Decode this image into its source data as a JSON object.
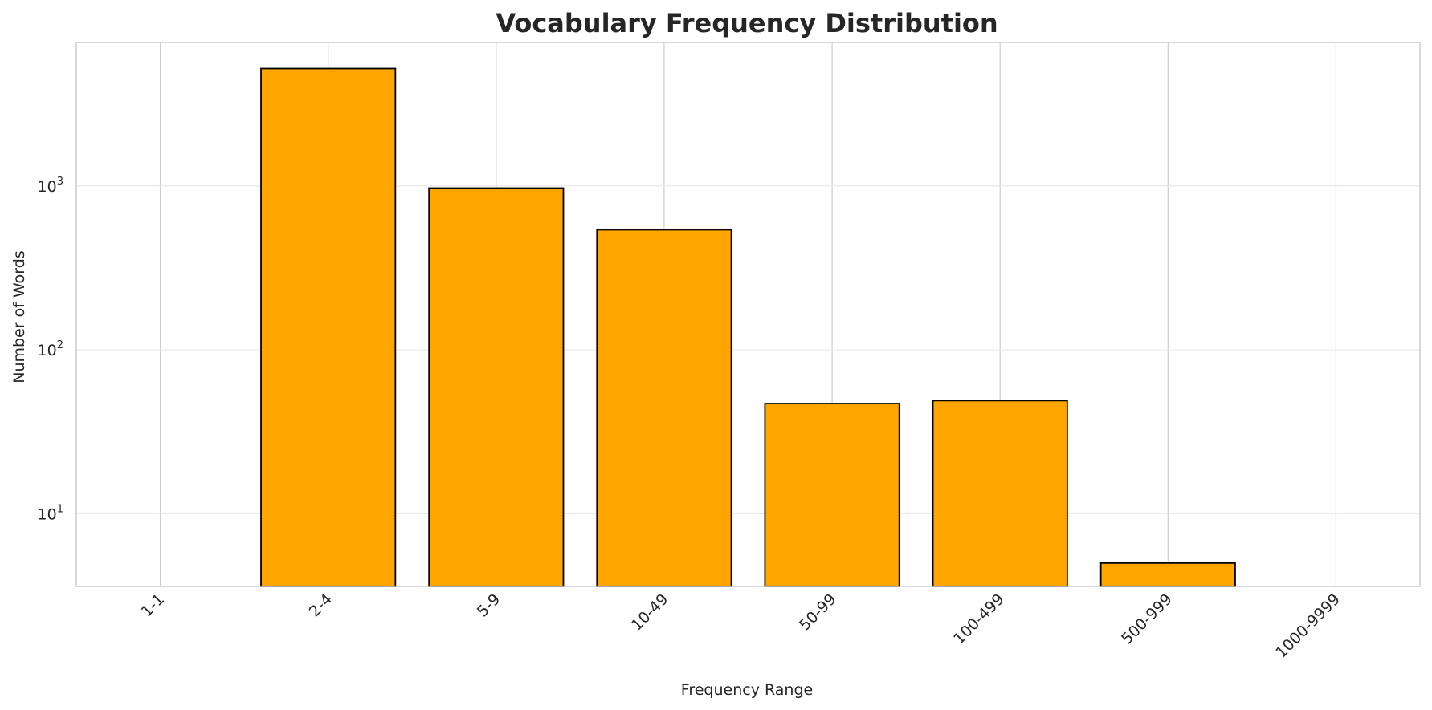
{
  "chart_data": {
    "type": "bar",
    "title": "Vocabulary Frequency Distribution",
    "xlabel": "Frequency Range",
    "ylabel": "Number of Words",
    "categories": [
      "1-1",
      "2-4",
      "5-9",
      "10-49",
      "50-99",
      "100-499",
      "500-999",
      "1000-9999"
    ],
    "values": [
      0,
      5200,
      970,
      540,
      47,
      49,
      5,
      0
    ],
    "yscale": "log",
    "ylim": [
      3.6,
      7500
    ],
    "yticks": [
      {
        "base": "10",
        "exp": "1",
        "value": 10
      },
      {
        "base": "10",
        "exp": "2",
        "value": 100
      },
      {
        "base": "10",
        "exp": "3",
        "value": 1000
      }
    ],
    "grid": true,
    "bar_color": "#FFA500",
    "edge_color": "#000000",
    "tick_rotation": -45
  }
}
